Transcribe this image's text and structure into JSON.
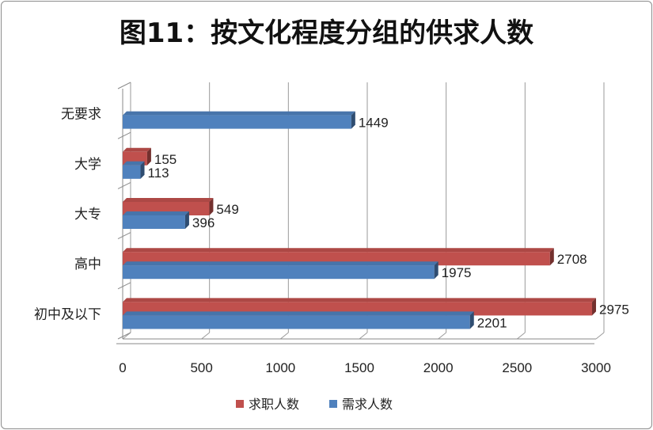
{
  "chart_data": {
    "type": "bar",
    "orientation": "horizontal",
    "title": "图11：按文化程度分组的供求人数",
    "categories": [
      "无要求",
      "大学",
      "大专",
      "高中",
      "初中及以下"
    ],
    "series": [
      {
        "name": "求职人数",
        "color": "#c0504d",
        "values": [
          null,
          155,
          549,
          2708,
          2975
        ]
      },
      {
        "name": "需求人数",
        "color": "#4f81bd",
        "values": [
          1449,
          113,
          396,
          1975,
          2201
        ]
      }
    ],
    "xlim": [
      0,
      3000
    ],
    "xticks": [
      0,
      500,
      1000,
      1500,
      2000,
      2500,
      3000
    ],
    "grid": true,
    "legend": "bottom"
  }
}
